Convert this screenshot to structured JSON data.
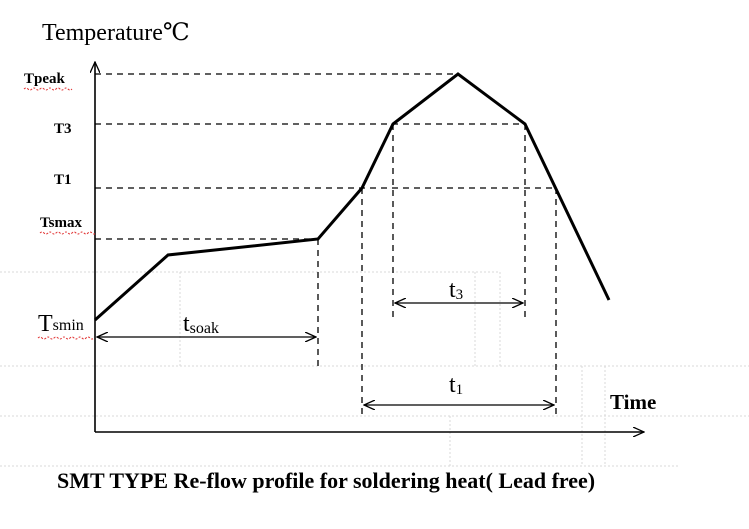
{
  "title": "SMT TYPE Re-flow profile for soldering heat( Lead free)",
  "axes": {
    "y_label": "Temperature℃",
    "x_label": "Time"
  },
  "levels": {
    "tpeak": "Tpeak",
    "t3": "T3",
    "t1": "T1",
    "tsmax": "Tsmax",
    "tsmin_main": "T",
    "tsmin_sub": "smin"
  },
  "intervals": {
    "tsoak_main": "t",
    "tsoak_sub": "soak",
    "t3_main": "t",
    "t3_sub": "3",
    "t1_main": "t",
    "t1_sub": "1"
  }
}
